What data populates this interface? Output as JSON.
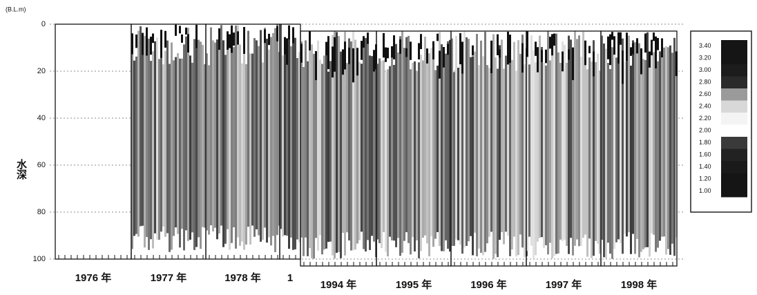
{
  "chart_data": {
    "type": "contour",
    "unit_label": "(B.L.m)",
    "ylabel": "水深",
    "ylim": [
      0,
      100
    ],
    "y_inverted": true,
    "yticks": [
      0,
      20,
      40,
      60,
      80,
      100
    ],
    "grid": true,
    "categories": [
      "1976 年",
      "1977 年",
      "1978 年",
      "1",
      "1994 年",
      "1995 年",
      "1996 年",
      "1997 年",
      "1998 年"
    ],
    "legend_levels": [
      {
        "value": 3.4,
        "label": "3.40",
        "color": "#151515"
      },
      {
        "value": 3.2,
        "label": "3.20",
        "color": "#151515"
      },
      {
        "value": 3.0,
        "label": "3.00",
        "color": "#1c1c1c"
      },
      {
        "value": 2.8,
        "label": "2.80",
        "color": "#2a2a2a"
      },
      {
        "value": 2.6,
        "label": "2.60",
        "color": "#9a9a9a"
      },
      {
        "value": 2.4,
        "label": "2.40",
        "color": "#d8d8d8"
      },
      {
        "value": 2.2,
        "label": "2.20",
        "color": "#f4f4f4"
      },
      {
        "value": 2.0,
        "label": "2.00",
        "color": "#ffffff"
      },
      {
        "value": 1.8,
        "label": "1.80",
        "color": "#3a3a3a"
      },
      {
        "value": 1.6,
        "label": "1.60",
        "color": "#222222"
      },
      {
        "value": 1.4,
        "label": "1.40",
        "color": "#1a1a1a"
      },
      {
        "value": 1.2,
        "label": "1.20",
        "color": "#151515"
      },
      {
        "value": 1.0,
        "label": "1.00",
        "color": "#151515"
      }
    ]
  }
}
